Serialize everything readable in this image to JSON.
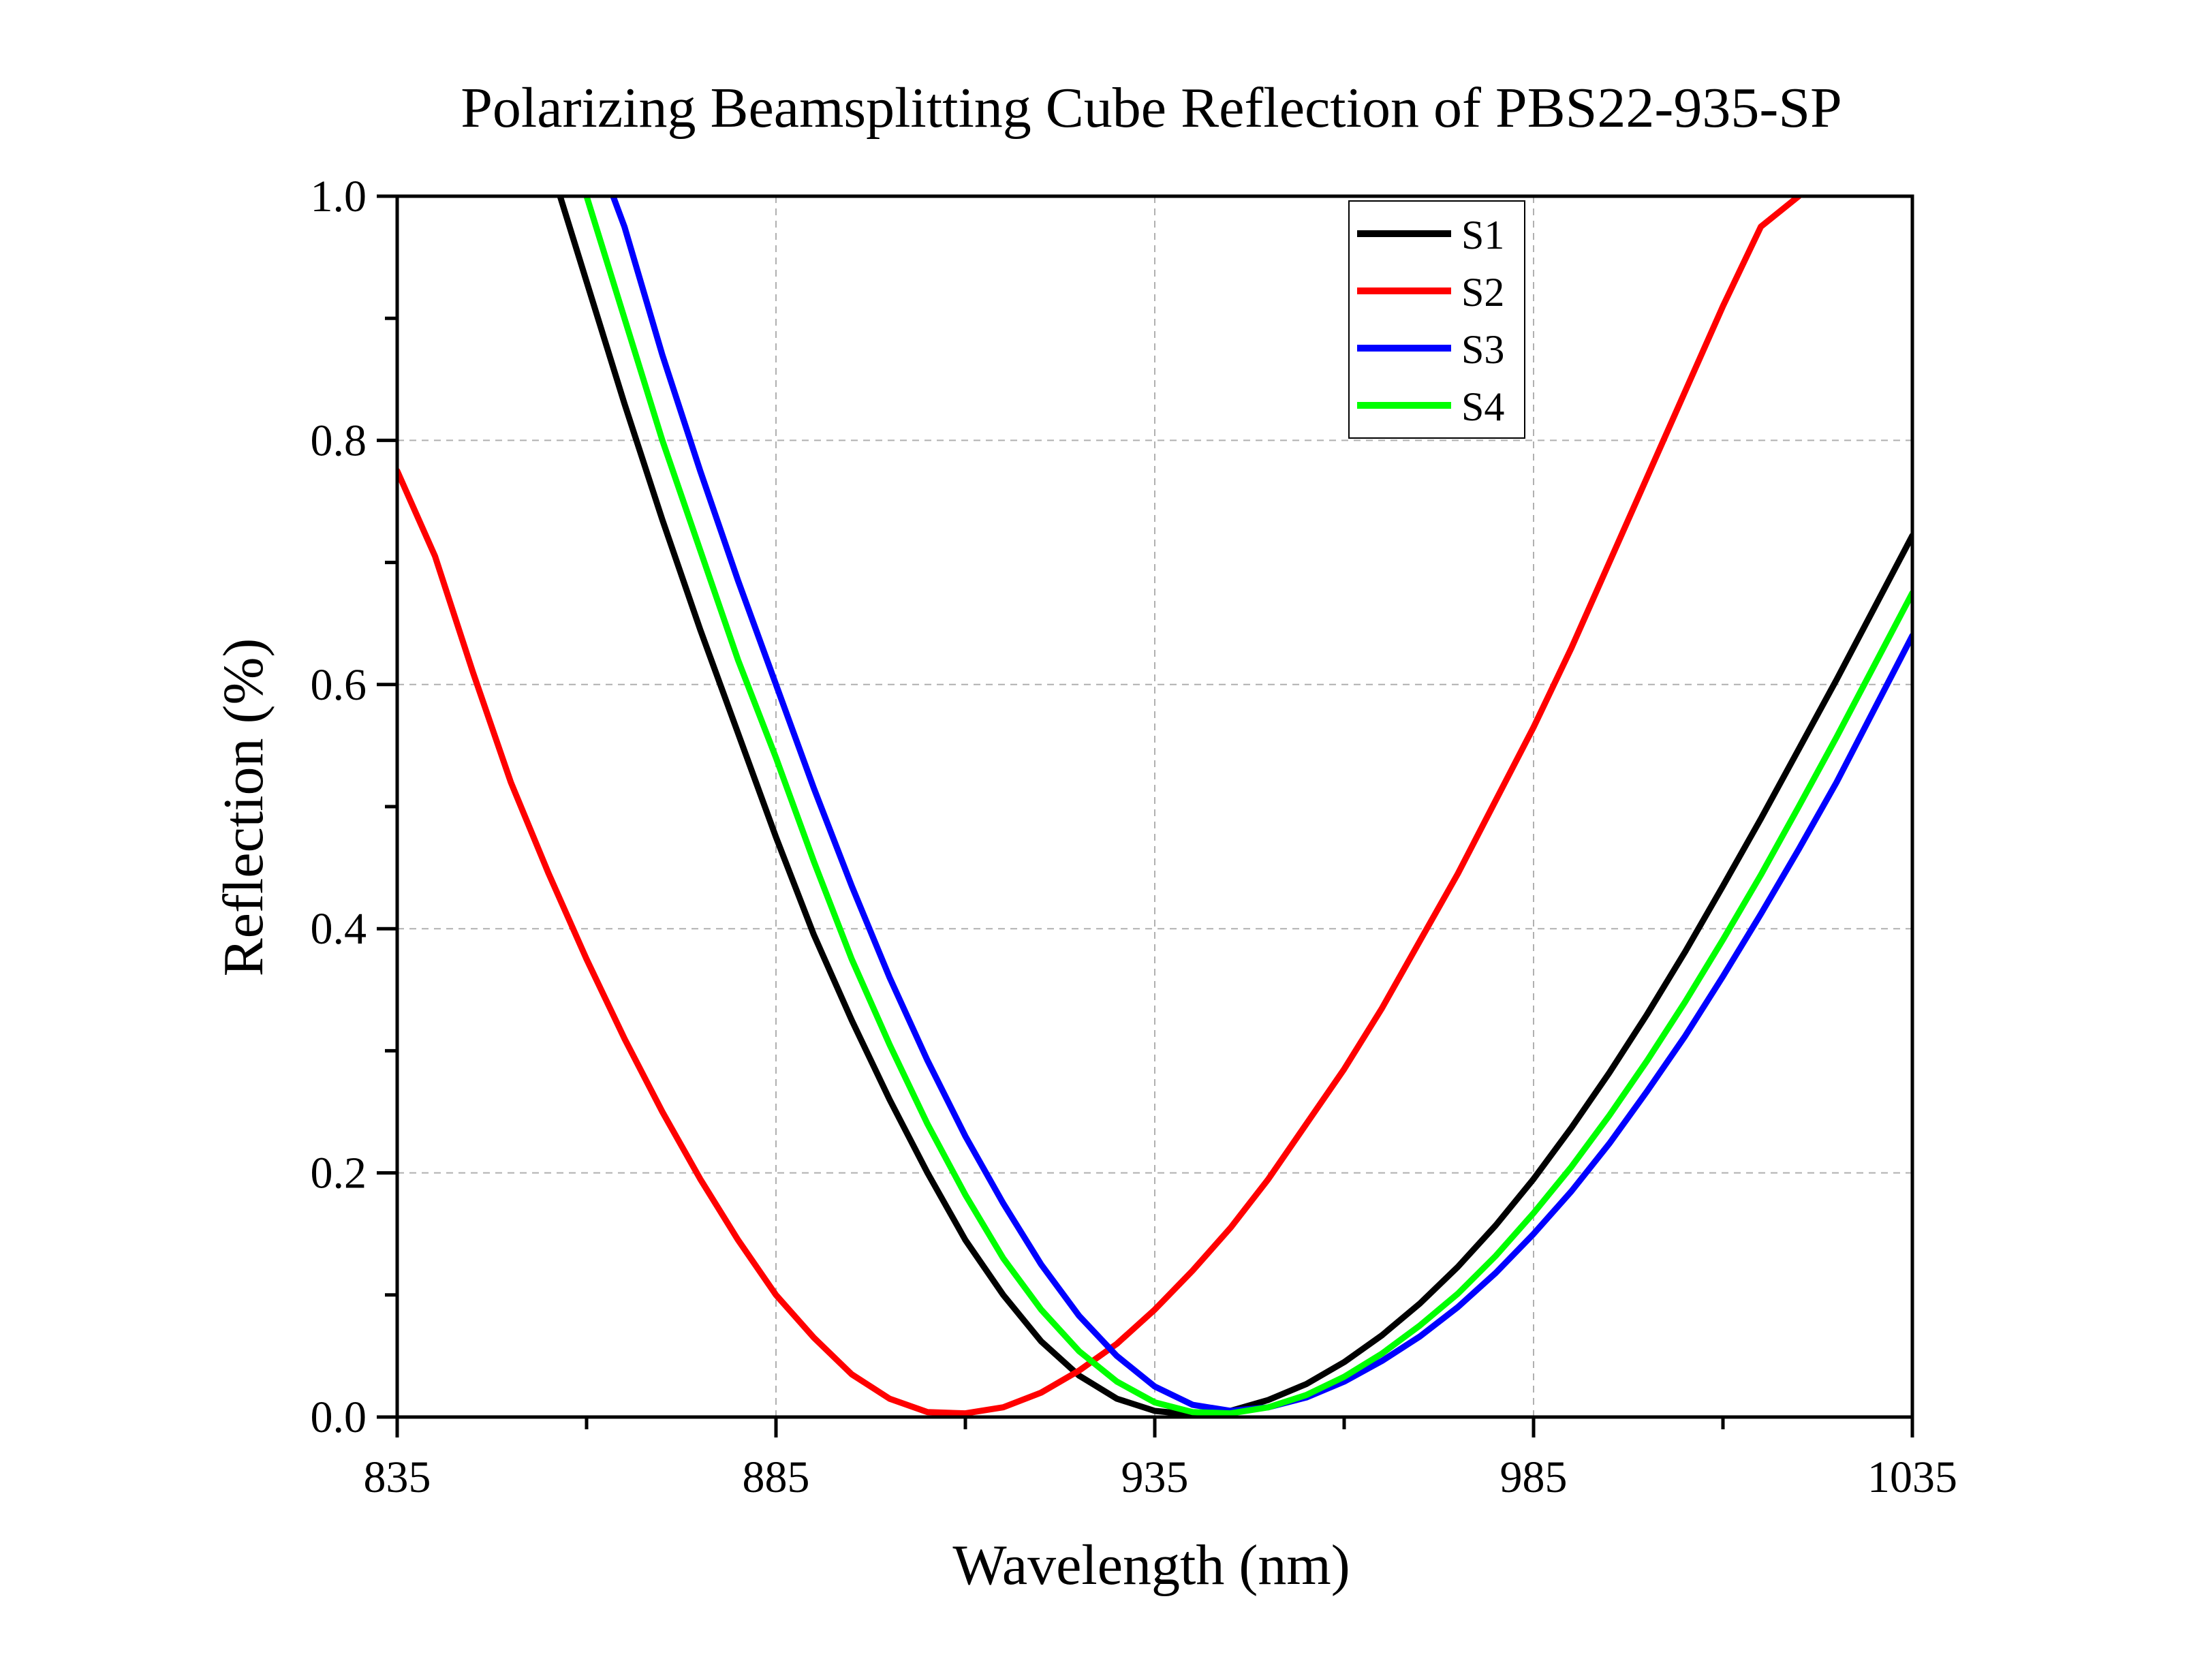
{
  "chart_data": {
    "type": "line",
    "title": "Polarizing Beamsplitting Cube Reflection of PBS22-935-SP",
    "xlabel": "Wavelength (nm)",
    "ylabel": "Reflection (%)",
    "xlim": [
      835,
      1035
    ],
    "ylim": [
      0.0,
      1.0
    ],
    "xticks": [
      "835",
      "885",
      "935",
      "985",
      "1035"
    ],
    "yticks": [
      "0.0",
      "0.2",
      "0.4",
      "0.6",
      "0.8",
      "1.0"
    ],
    "grid": true,
    "legend_position": "top-right",
    "series": [
      {
        "name": "S1",
        "color": "#000000",
        "x": [
          856.5,
          860,
          865,
          870,
          875,
          880,
          885,
          890,
          895,
          900,
          905,
          910,
          915,
          920,
          925,
          930,
          935,
          940,
          945,
          950,
          955,
          960,
          965,
          970,
          975,
          980,
          985,
          990,
          995,
          1000,
          1005,
          1010,
          1015,
          1020,
          1025,
          1030,
          1035
        ],
        "y": [
          1.0,
          0.93,
          0.83,
          0.735,
          0.645,
          0.56,
          0.475,
          0.395,
          0.325,
          0.26,
          0.2,
          0.145,
          0.1,
          0.062,
          0.034,
          0.015,
          0.005,
          0.002,
          0.005,
          0.014,
          0.027,
          0.045,
          0.067,
          0.093,
          0.123,
          0.157,
          0.195,
          0.237,
          0.282,
          0.33,
          0.381,
          0.435,
          0.49,
          0.547,
          0.604,
          0.663,
          0.722
        ]
      },
      {
        "name": "S2",
        "color": "#ff0000",
        "x": [
          835,
          840,
          845,
          850,
          855,
          860,
          865,
          870,
          875,
          880,
          885,
          890,
          895,
          900,
          905,
          910,
          915,
          920,
          925,
          930,
          935,
          940,
          945,
          950,
          955,
          960,
          965,
          970,
          975,
          980,
          985,
          990,
          995,
          1000,
          1005,
          1010,
          1015,
          1020
        ],
        "y": [
          0.775,
          0.705,
          0.61,
          0.52,
          0.445,
          0.375,
          0.31,
          0.25,
          0.195,
          0.145,
          0.1,
          0.065,
          0.035,
          0.015,
          0.004,
          0.003,
          0.008,
          0.02,
          0.038,
          0.06,
          0.088,
          0.12,
          0.155,
          0.195,
          0.24,
          0.285,
          0.335,
          0.39,
          0.445,
          0.505,
          0.565,
          0.63,
          0.7,
          0.77,
          0.84,
          0.91,
          0.975,
          1.0
        ]
      },
      {
        "name": "S3",
        "color": "#0000ff",
        "x": [
          863.5,
          865,
          870,
          875,
          880,
          885,
          890,
          895,
          900,
          905,
          910,
          915,
          920,
          925,
          930,
          935,
          940,
          945,
          950,
          955,
          960,
          965,
          970,
          975,
          980,
          985,
          990,
          995,
          1000,
          1005,
          1010,
          1015,
          1020,
          1025,
          1030,
          1035
        ],
        "y": [
          1.0,
          0.975,
          0.87,
          0.775,
          0.685,
          0.6,
          0.515,
          0.435,
          0.36,
          0.292,
          0.23,
          0.175,
          0.125,
          0.083,
          0.05,
          0.025,
          0.01,
          0.005,
          0.008,
          0.016,
          0.029,
          0.046,
          0.066,
          0.09,
          0.118,
          0.15,
          0.185,
          0.224,
          0.267,
          0.312,
          0.361,
          0.412,
          0.465,
          0.52,
          0.58,
          0.64
        ]
      },
      {
        "name": "S4",
        "color": "#00ff00",
        "x": [
          860,
          865,
          870,
          875,
          880,
          885,
          890,
          895,
          900,
          905,
          910,
          915,
          920,
          925,
          930,
          935,
          940,
          945,
          950,
          955,
          960,
          965,
          970,
          975,
          980,
          985,
          990,
          995,
          1000,
          1005,
          1010,
          1015,
          1020,
          1025,
          1030,
          1035
        ],
        "y": [
          1.0,
          0.9,
          0.8,
          0.71,
          0.62,
          0.54,
          0.455,
          0.375,
          0.305,
          0.24,
          0.182,
          0.13,
          0.088,
          0.054,
          0.029,
          0.012,
          0.004,
          0.003,
          0.008,
          0.018,
          0.033,
          0.052,
          0.075,
          0.101,
          0.132,
          0.167,
          0.205,
          0.247,
          0.292,
          0.34,
          0.391,
          0.444,
          0.5,
          0.557,
          0.616,
          0.675
        ]
      }
    ]
  }
}
